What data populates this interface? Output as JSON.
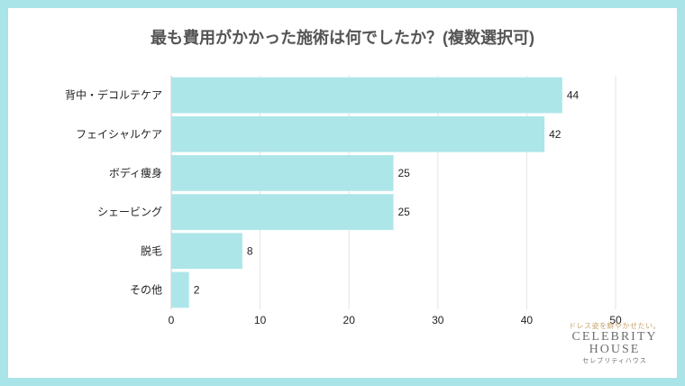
{
  "chart_data": {
    "type": "bar",
    "orientation": "horizontal",
    "title": "最も費用がかかった施術は何でしたか？(複数選択可)",
    "categories": [
      "背中・デコルテケア",
      "フェイシャルケア",
      "ボディ痩身",
      "シェービング",
      "脱毛",
      "その他"
    ],
    "values": [
      44,
      42,
      25,
      25,
      8,
      2
    ],
    "xlim": [
      0,
      50
    ],
    "xticks": [
      0,
      10,
      20,
      30,
      40,
      50
    ],
    "xlabel": "",
    "ylabel": "",
    "grid": true,
    "bar_color": "#ade6e9"
  },
  "logo": {
    "tagline": "ドレス姿を鮮やかせたい。",
    "line1": "CELEBRITY",
    "line2": "HOUSE",
    "kana": "セレブリティハウス"
  }
}
